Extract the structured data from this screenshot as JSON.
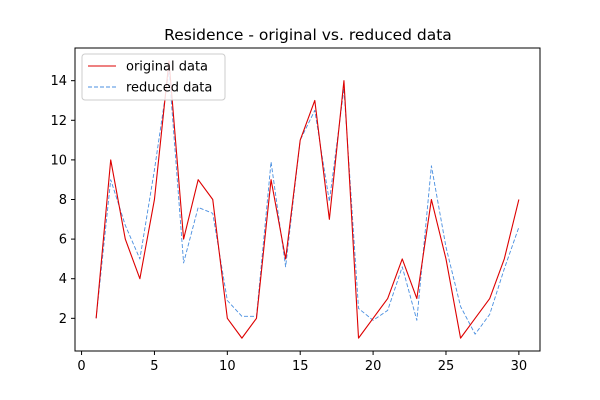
{
  "chart_data": {
    "type": "line",
    "title": "Residence - original vs. reduced data",
    "xlabel": "",
    "ylabel": "",
    "xlim": [
      -0.45,
      31.45
    ],
    "ylim": [
      0.35,
      15.65
    ],
    "xticks": [
      0,
      5,
      10,
      15,
      20,
      25,
      30
    ],
    "yticks": [
      2,
      4,
      6,
      8,
      10,
      12,
      14
    ],
    "grid": false,
    "legend_position": "top-left",
    "series": [
      {
        "name": "original data",
        "color": "#dd0000",
        "style": "solid",
        "x": [
          1,
          2,
          3,
          4,
          5,
          6,
          7,
          8,
          9,
          10,
          11,
          12,
          13,
          14,
          15,
          16,
          17,
          18,
          19,
          20,
          21,
          22,
          23,
          24,
          25,
          26,
          27,
          28,
          29,
          30
        ],
        "values": [
          2,
          10,
          6,
          4,
          8,
          15,
          6,
          9,
          8,
          2,
          1,
          2,
          9,
          5,
          11,
          13,
          7,
          14,
          1,
          2,
          3,
          5,
          3,
          8,
          5,
          1,
          2,
          3,
          5,
          8
        ]
      },
      {
        "name": "reduced data",
        "color": "#4a8fe0",
        "style": "dashed",
        "x": [
          1,
          2,
          3,
          4,
          5,
          6,
          7,
          8,
          9,
          10,
          11,
          12,
          13,
          14,
          15,
          16,
          17,
          18,
          19,
          20,
          21,
          22,
          23,
          24,
          25,
          26,
          27,
          28,
          29,
          30
        ],
        "values": [
          2,
          9,
          6.7,
          5,
          9.5,
          14.5,
          4.8,
          7.6,
          7.3,
          2.9,
          2.1,
          2.1,
          9.9,
          4.6,
          11,
          12.5,
          7.9,
          13.6,
          2.5,
          1.9,
          2.4,
          4.6,
          1.9,
          9.7,
          5.6,
          2.6,
          1.2,
          2.2,
          4.5,
          6.6
        ]
      }
    ]
  }
}
